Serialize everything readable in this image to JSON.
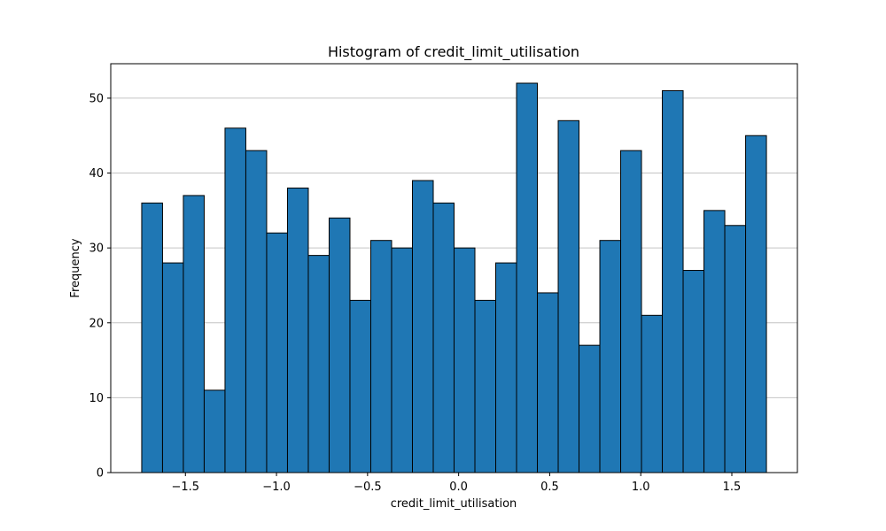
{
  "chart_data": {
    "type": "bar",
    "title": "Histogram of credit_limit_utilisation",
    "xlabel": "credit_limit_utilisation",
    "ylabel": "Frequency",
    "bin_range": [
      -1.74,
      1.69
    ],
    "values": [
      36,
      28,
      37,
      11,
      46,
      43,
      32,
      38,
      29,
      34,
      23,
      31,
      30,
      39,
      36,
      30,
      23,
      28,
      52,
      24,
      47,
      17,
      31,
      43,
      21,
      51,
      27,
      35,
      33,
      45
    ],
    "xlim": [
      -1.91,
      1.86
    ],
    "ylim": [
      0,
      54.6
    ],
    "xticks": [
      -1.5,
      -1.0,
      -0.5,
      0.0,
      0.5,
      1.0,
      1.5
    ],
    "xtick_labels": [
      "−1.5",
      "−1.0",
      "−0.5",
      "0.0",
      "0.5",
      "1.0",
      "1.5"
    ],
    "yticks": [
      0,
      10,
      20,
      30,
      40,
      50
    ],
    "ytick_labels": [
      "0",
      "10",
      "20",
      "30",
      "40",
      "50"
    ],
    "grid": "y",
    "bar_color": "#1f77b4",
    "edge_color": "#000000"
  }
}
